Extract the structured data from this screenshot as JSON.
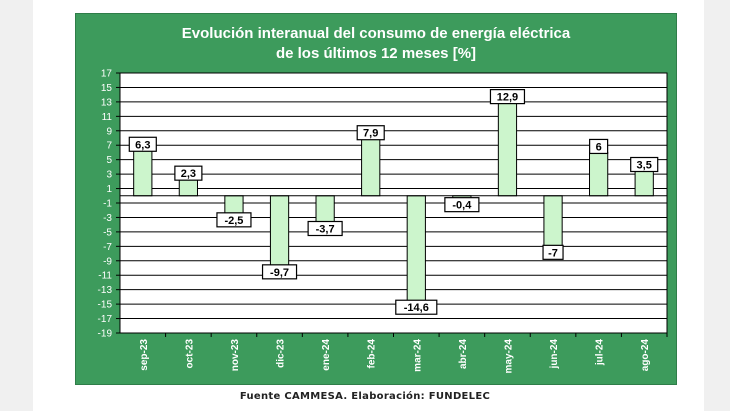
{
  "chart_data": {
    "type": "bar",
    "title_line1": "Evolución interanual del consumo  de energía eléctrica",
    "title_line2": "de los últimos 12 meses [%]",
    "categories": [
      "sep-23",
      "oct-23",
      "nov-23",
      "dic-23",
      "ene-24",
      "feb-24",
      "mar-24",
      "abr-24",
      "may-24",
      "jun-24",
      "jul-24",
      "ago-24"
    ],
    "values": [
      6.3,
      2.3,
      -2.5,
      -9.7,
      -3.7,
      7.9,
      -14.6,
      -0.4,
      12.9,
      -7,
      6,
      3.5
    ],
    "value_labels": [
      "6,3",
      "2,3",
      "-2,5",
      "-9,7",
      "-3,7",
      "7,9",
      "-14,6",
      "-0,4",
      "12,9",
      "-7",
      "6",
      "3,5"
    ],
    "y_ticks": [
      17,
      15,
      13,
      11,
      9,
      7,
      5,
      3,
      1,
      -1,
      -3,
      -5,
      -7,
      -9,
      -11,
      -13,
      -15,
      -17,
      -19
    ],
    "ylim": [
      -19,
      17
    ],
    "grid": true,
    "colors": {
      "panel": "#3d9b5c",
      "bar": "#ccf5cc",
      "plot": "#ffffff",
      "grid": "#000000"
    }
  },
  "source_text": "Fuente CAMMESA. Elaboración: FUNDELEC"
}
